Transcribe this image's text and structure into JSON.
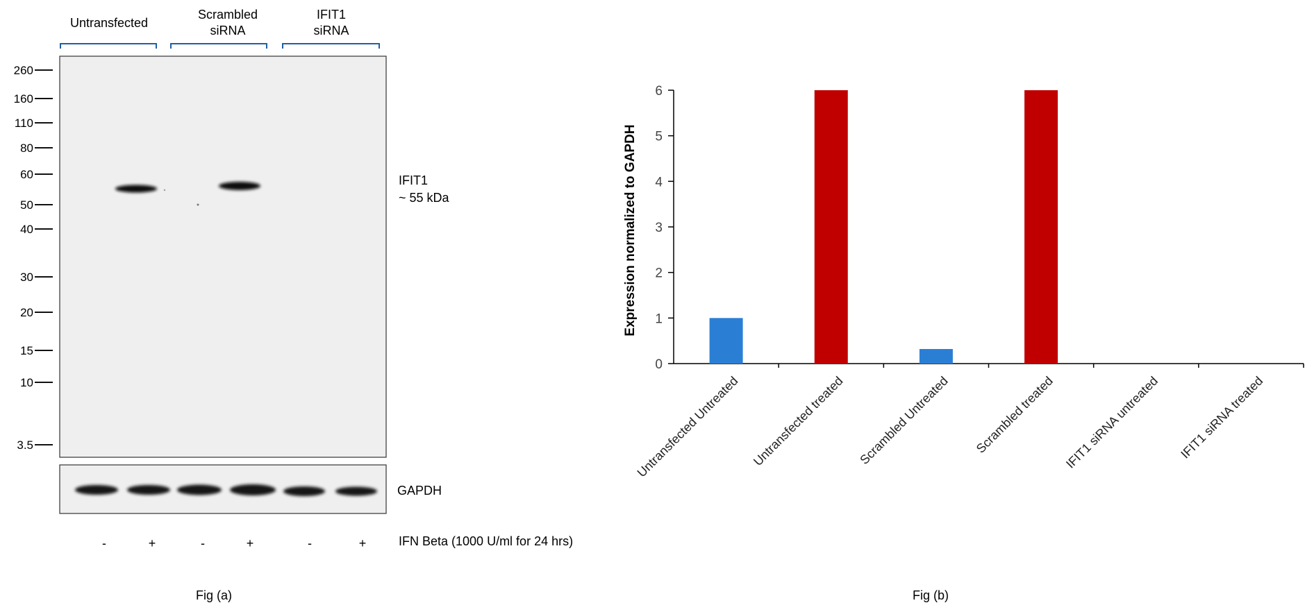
{
  "figure_a": {
    "lane_groups": [
      {
        "line1": "Untransfected",
        "line2": ""
      },
      {
        "line1": "Scrambled",
        "line2": "siRNA"
      },
      {
        "line1": "IFIT1",
        "line2": "siRNA"
      }
    ],
    "mw_markers": [
      "260",
      "160",
      "110",
      "80",
      "60",
      "50",
      "40",
      "30",
      "20",
      "15",
      "10",
      "3.5"
    ],
    "band_label": {
      "line1": "IFIT1",
      "line2": "~ 55 kDa"
    },
    "loading_control_label": "GAPDH",
    "treatment_signs": [
      "-",
      "+",
      "-",
      "+",
      "-",
      "+"
    ],
    "treatment_label": "IFN Beta (1000 U/ml for 24 hrs)",
    "caption": "Fig (a)",
    "colors": {
      "bracket": "#1f5fa8",
      "membrane": "#efefef",
      "band": "#111111"
    }
  },
  "figure_b": {
    "caption": "Fig (b)"
  },
  "chart_data": {
    "type": "bar",
    "categories": [
      "Untransfected Untreated",
      "Untransfected treated",
      "Scrambled Untreated",
      "Scrambled treated",
      "IFIT1 siRNA untreated",
      "IFIT1 siRNA treated"
    ],
    "values": [
      1.0,
      6.0,
      0.32,
      6.0,
      0.0,
      0.0
    ],
    "bar_colors": [
      "#2a7fd4",
      "#c00000",
      "#2a7fd4",
      "#c00000",
      "#2a7fd4",
      "#c00000"
    ],
    "ylabel": "Expression normalized to GAPDH",
    "xlabel": "",
    "ylim": [
      0,
      6
    ],
    "yticks": [
      "0",
      "1",
      "2",
      "3",
      "4",
      "5",
      "6"
    ],
    "grid": false,
    "legend": "none"
  }
}
